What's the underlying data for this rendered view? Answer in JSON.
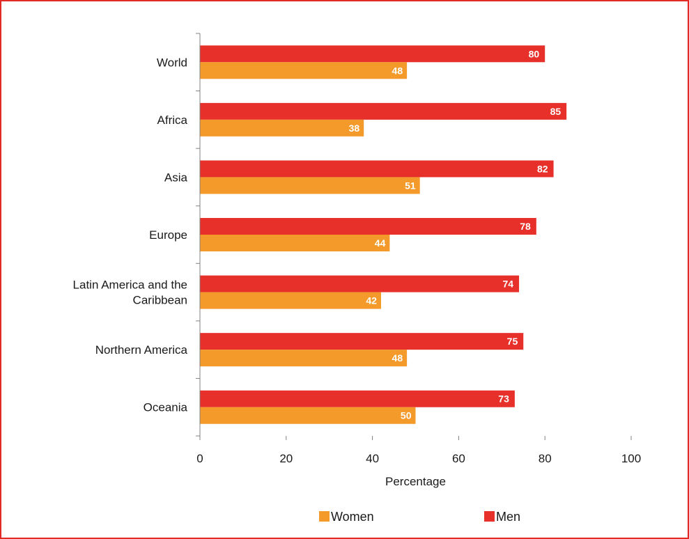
{
  "chart_data": {
    "type": "bar",
    "orientation": "horizontal",
    "categories": [
      [
        "World"
      ],
      [
        "Africa"
      ],
      [
        "Asia"
      ],
      [
        "Europe"
      ],
      [
        "Latin America and the",
        "Caribbean"
      ],
      [
        "Northern America"
      ],
      [
        "Oceania"
      ]
    ],
    "series": [
      {
        "name": "Men",
        "color": "#e8302a",
        "values": [
          80,
          85,
          82,
          78,
          74,
          75,
          73
        ]
      },
      {
        "name": "Women",
        "color": "#f39a2b",
        "values": [
          48,
          38,
          51,
          44,
          42,
          48,
          50
        ]
      }
    ],
    "xlabel": "Percentage",
    "xlim": [
      0,
      100
    ],
    "xticks": [
      0,
      20,
      40,
      60,
      80,
      100
    ],
    "grid": false,
    "data_labels": true,
    "legend": {
      "position": "bottom",
      "order": [
        "Women",
        "Men"
      ]
    }
  }
}
